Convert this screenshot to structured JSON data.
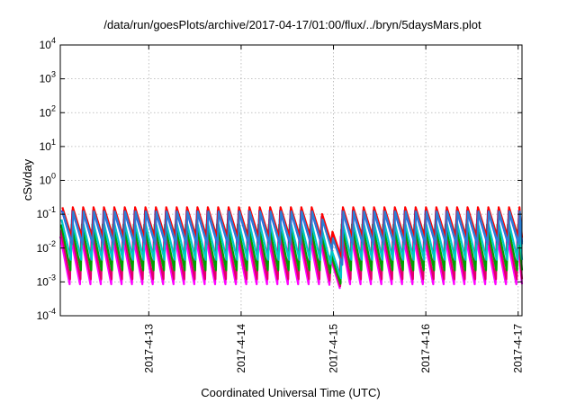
{
  "chart_data": {
    "type": "line",
    "title": "/data/run/goesPlots/archive/2017-04-17/01:00/flux/../bryn/5daysMars.plot",
    "xlabel": "Coordinated Universal Time (UTC)",
    "ylabel": "cSv/day",
    "yscale": "log",
    "ylim": [
      0.0001,
      10000
    ],
    "xlim": [
      "2017-04-12 01:00",
      "2017-04-17 01:00"
    ],
    "grid": true,
    "y_ticks": [
      {
        "base": "10",
        "exp": "-4",
        "value": 0.0001
      },
      {
        "base": "10",
        "exp": "-3",
        "value": 0.001
      },
      {
        "base": "10",
        "exp": "-2",
        "value": 0.01
      },
      {
        "base": "10",
        "exp": "-1",
        "value": 0.1
      },
      {
        "base": "10",
        "exp": "0",
        "value": 1
      },
      {
        "base": "10",
        "exp": "1",
        "value": 10
      },
      {
        "base": "10",
        "exp": "2",
        "value": 100
      },
      {
        "base": "10",
        "exp": "3",
        "value": 1000
      },
      {
        "base": "10",
        "exp": "4",
        "value": 10000
      }
    ],
    "x_ticks": [
      "2017-4-13",
      "2017-4-14",
      "2017-4-15",
      "2017-4-16",
      "2017-4-17"
    ],
    "x_tick_times": [
      "2017-04-13 00:00",
      "2017-04-14 00:00",
      "2017-04-15 00:00",
      "2017-04-16 00:00",
      "2017-04-17 00:00"
    ],
    "cycle_hours": 2.7,
    "dip": {
      "start": "2017-04-14 20:00",
      "end": "2017-04-15 00:00"
    },
    "series": [
      {
        "color": "#ff00ff",
        "peak": 0.022,
        "trough": 0.00085,
        "dip_low": 0.00062
      },
      {
        "color": "#e0006a",
        "peak": 0.035,
        "trough": 0.0012,
        "dip_low": 0.00068
      },
      {
        "color": "#00a000",
        "peak": 0.05,
        "trough": 0.0022,
        "dip_low": 0.00075
      },
      {
        "color": "#00c8c8",
        "peak": 0.07,
        "trough": 0.0045,
        "dip_low": 0.0011
      },
      {
        "color": "#1a3cff",
        "peak": 0.13,
        "trough": 0.015,
        "dip_low": 0.0035
      },
      {
        "color": "#ff0000",
        "peak": 0.16,
        "trough": 0.02,
        "dip_low": 0.0045
      },
      {
        "color": "#2a7fd4",
        "peak": 0.12,
        "trough": 0.013,
        "dip_low": 0.003
      }
    ]
  }
}
